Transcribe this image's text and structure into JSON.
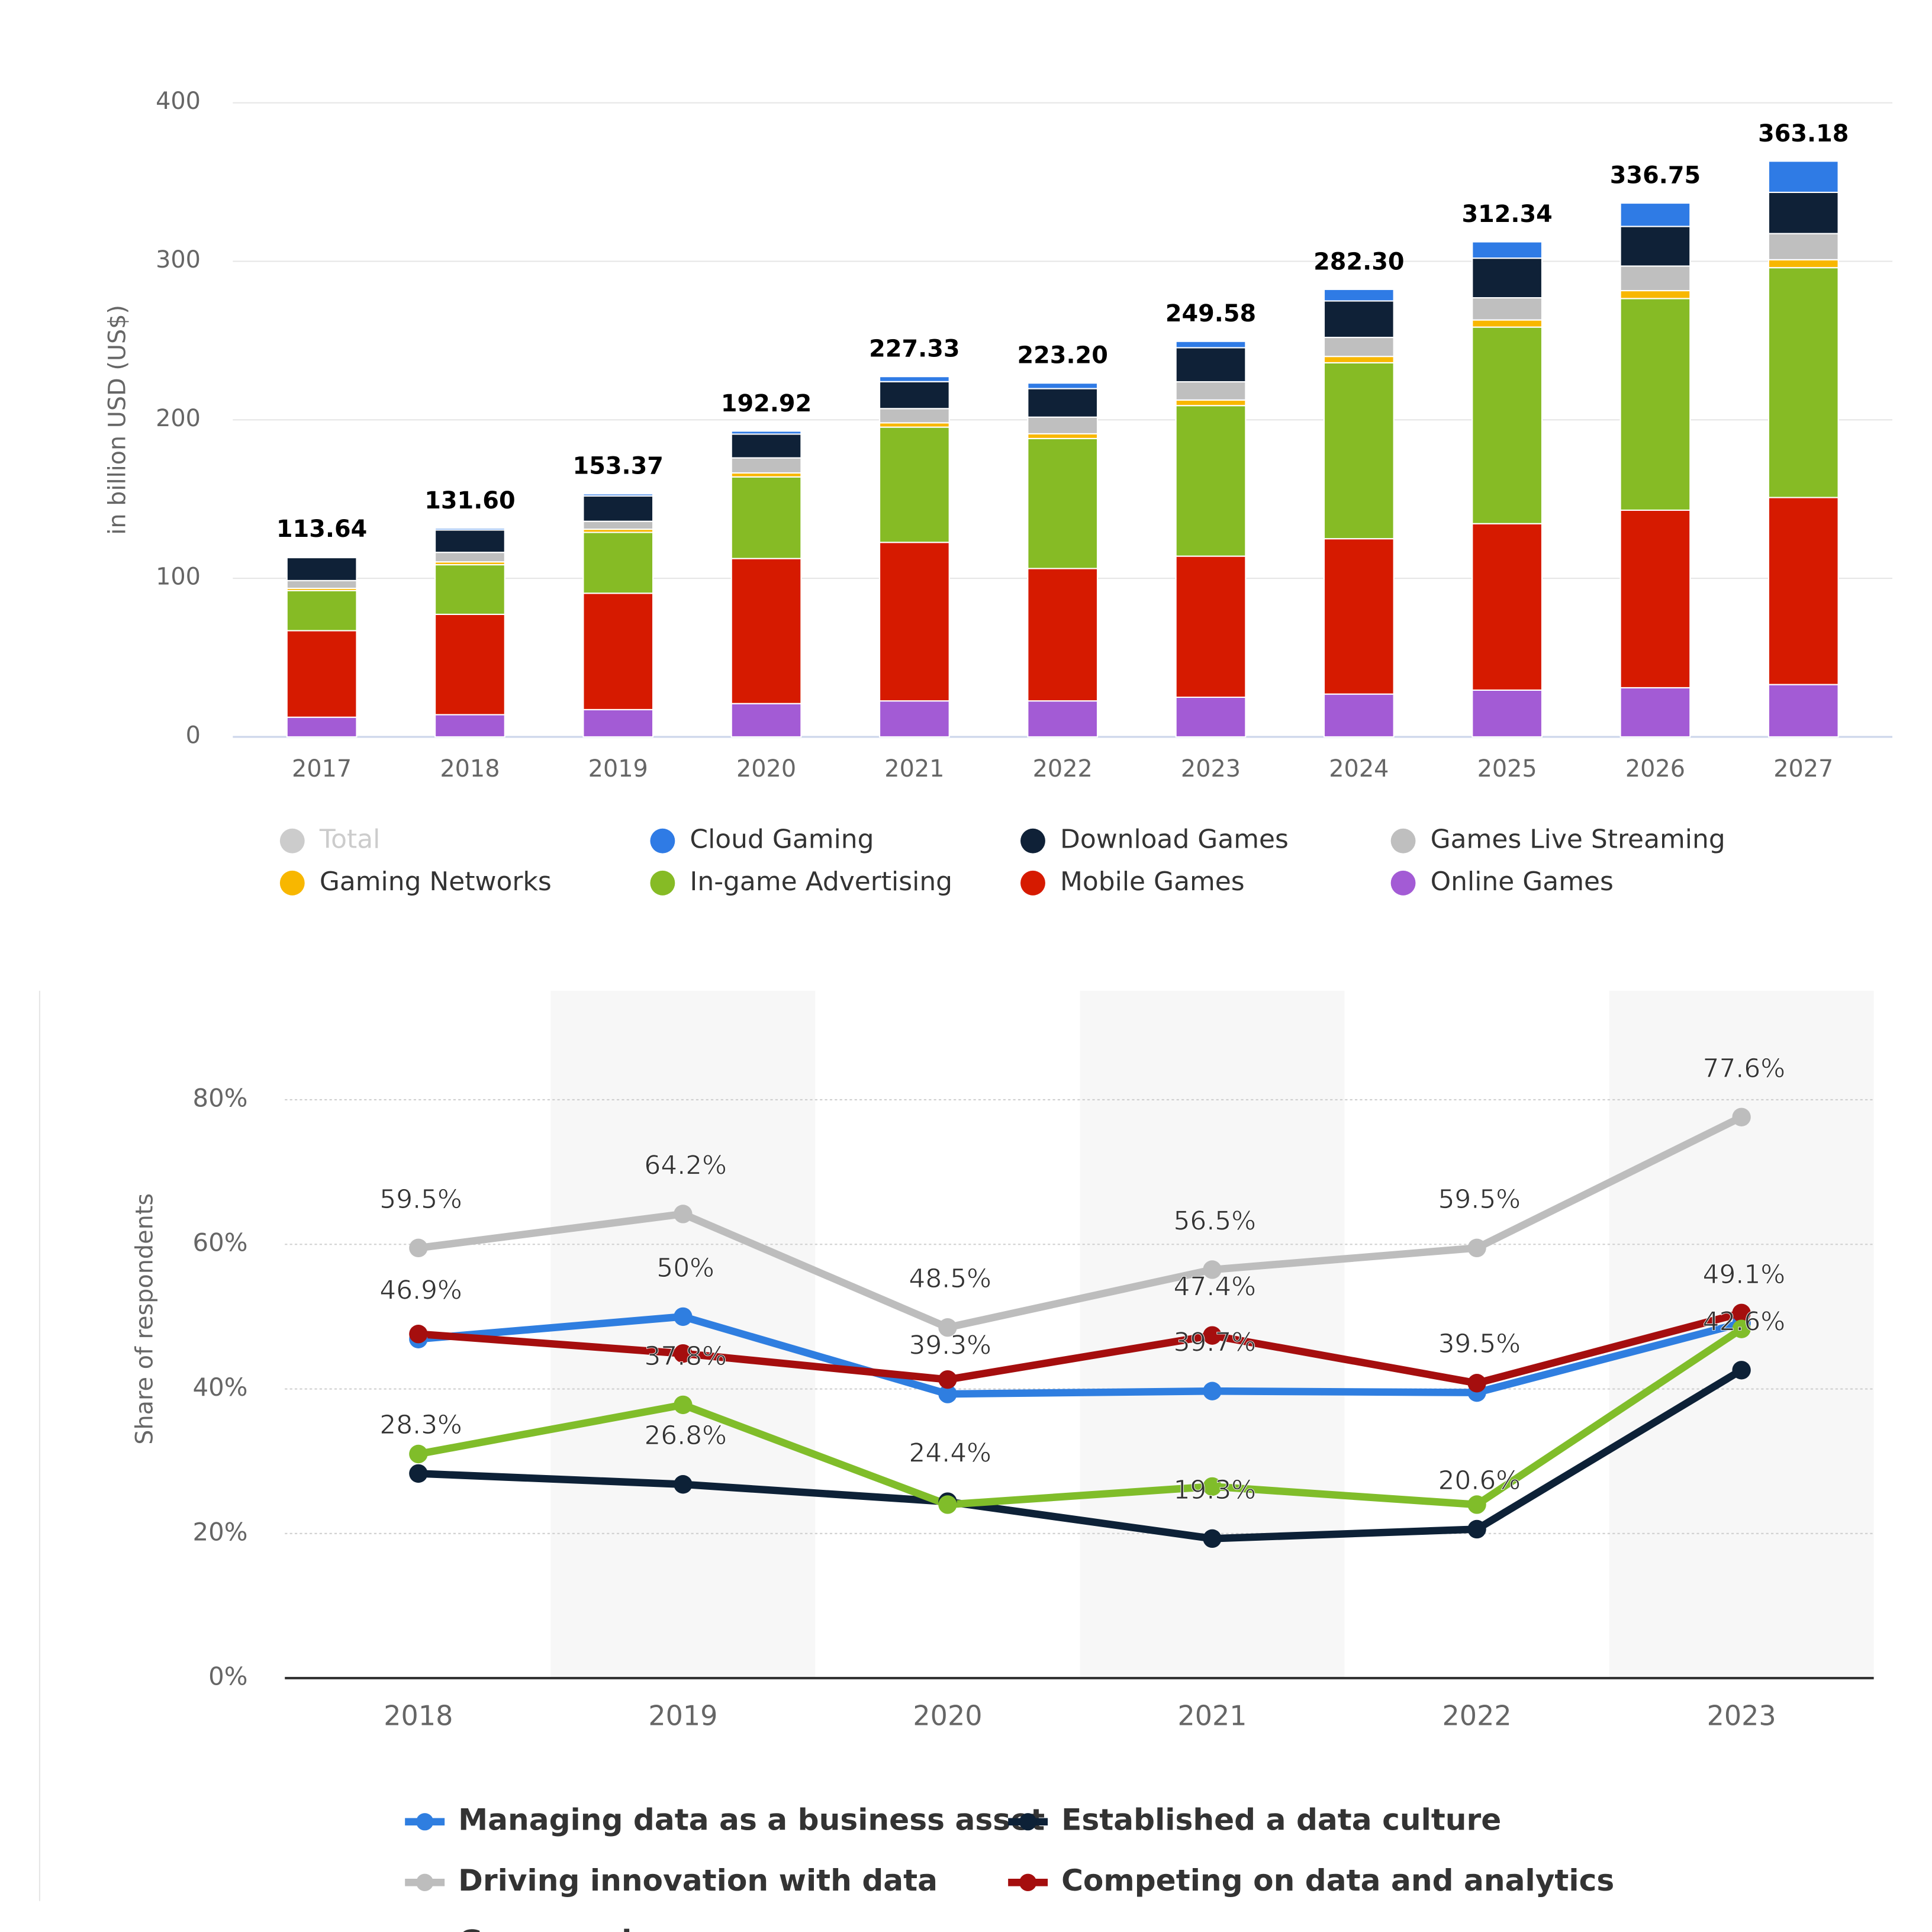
{
  "chart_data": [
    {
      "type": "bar",
      "stacked": true,
      "ylabel": "in billion USD (US$)",
      "categories": [
        "2017",
        "2018",
        "2019",
        "2020",
        "2021",
        "2022",
        "2023",
        "2024",
        "2025",
        "2026",
        "2027"
      ],
      "ylim": [
        0,
        400
      ],
      "yticks": [
        0,
        100,
        200,
        300,
        400
      ],
      "grid": true,
      "series": [
        {
          "name": "Total",
          "color": "#cccccc",
          "visible": false,
          "values": [
            113.64,
            131.6,
            153.37,
            192.92,
            227.33,
            223.2,
            249.58,
            282.3,
            312.34,
            336.75,
            363.18
          ],
          "value_labels": [
            "113.64",
            "131.60",
            "153.37",
            "192.92",
            "227.33",
            "223.20",
            "249.58",
            "282.30",
            "312.34",
            "336.75",
            "363.18"
          ]
        },
        {
          "name": "Cloud Gaming",
          "color": "#2f7be5",
          "values": [
            0.5,
            1.1,
            1.3,
            1.9,
            3.2,
            3.5,
            4,
            7.3,
            10.3,
            14.75,
            19.68
          ]
        },
        {
          "name": "Download Games",
          "color": "#0f2137",
          "values": [
            14.5,
            14.1,
            16,
            15,
            17,
            18,
            21.5,
            23,
            25,
            25,
            26
          ]
        },
        {
          "name": "Games Live Streaming",
          "color": "#bfbfbf",
          "values": [
            4.9,
            6,
            5,
            9.5,
            9,
            10.5,
            11.5,
            12,
            14,
            15.5,
            16.5
          ]
        },
        {
          "name": "Gaming Networks",
          "color": "#f8b700",
          "values": [
            1.4,
            1.8,
            2,
            2.5,
            2.7,
            3,
            3.5,
            4,
            4.5,
            5,
            5
          ]
        },
        {
          "name": "In-game Advertising",
          "color": "#86bb25",
          "values": [
            25.3,
            31.3,
            38.4,
            51.5,
            72.7,
            82,
            95,
            111,
            124,
            133.5,
            145
          ]
        },
        {
          "name": "Mobile Games",
          "color": "#d61a00",
          "values": [
            54.6,
            63.3,
            73.4,
            91.5,
            100,
            83.5,
            89,
            98,
            105,
            112,
            118
          ]
        },
        {
          "name": "Online Games",
          "color": "#a35bd5",
          "values": [
            12.4,
            14,
            17.2,
            21,
            22.7,
            22.7,
            25,
            27,
            29.5,
            31,
            33
          ]
        }
      ]
    },
    {
      "type": "line",
      "ylabel": "Share of respondents",
      "categories": [
        "2018",
        "2019",
        "2020",
        "2021",
        "2022",
        "2023"
      ],
      "ylim": [
        0,
        80
      ],
      "yticks": [
        {
          "value": 0,
          "label": "0%"
        },
        {
          "value": 20,
          "label": "20%"
        },
        {
          "value": 40,
          "label": "40%"
        },
        {
          "value": 60,
          "label": "60%"
        },
        {
          "value": 80,
          "label": "80%"
        }
      ],
      "grid": true,
      "series": [
        {
          "name": "Managing data as a business asset",
          "color": "#2f7ee0",
          "values": [
            46.9,
            50,
            39.3,
            39.7,
            39.5,
            49.1
          ],
          "value_labels": [
            "46.9%",
            "50%",
            "39.3%",
            "39.7%",
            "39.5%",
            "49.1%"
          ]
        },
        {
          "name": "Established a data culture",
          "color": "#0d2137",
          "values": [
            28.3,
            26.8,
            24.4,
            19.3,
            20.6,
            42.6
          ],
          "value_labels": [
            "28.3%",
            "26.8%",
            "24.4%",
            "19.3%",
            "20.6%",
            "42.6%"
          ]
        },
        {
          "name": "Driving innovation with data",
          "color": "#bdbdbd",
          "values": [
            59.5,
            64.2,
            48.5,
            56.5,
            59.5,
            77.6
          ],
          "value_labels": [
            "59.5%",
            "64.2%",
            "48.5%",
            "56.5%",
            "59.5%",
            "77.6%"
          ]
        },
        {
          "name": "Competing on data and analytics",
          "color": "#a50e0e",
          "values": [
            47.6,
            44.9,
            41.3,
            47.4,
            40.8,
            50.5
          ],
          "value_labels": [
            null,
            null,
            null,
            "47.4%",
            null,
            null
          ]
        },
        {
          "name": "Green series",
          "color": "#80bd2a",
          "values": [
            31,
            37.8,
            24,
            26.5,
            24,
            48.3
          ],
          "value_labels": [
            null,
            "37.8%",
            null,
            null,
            null,
            null
          ]
        }
      ]
    }
  ]
}
